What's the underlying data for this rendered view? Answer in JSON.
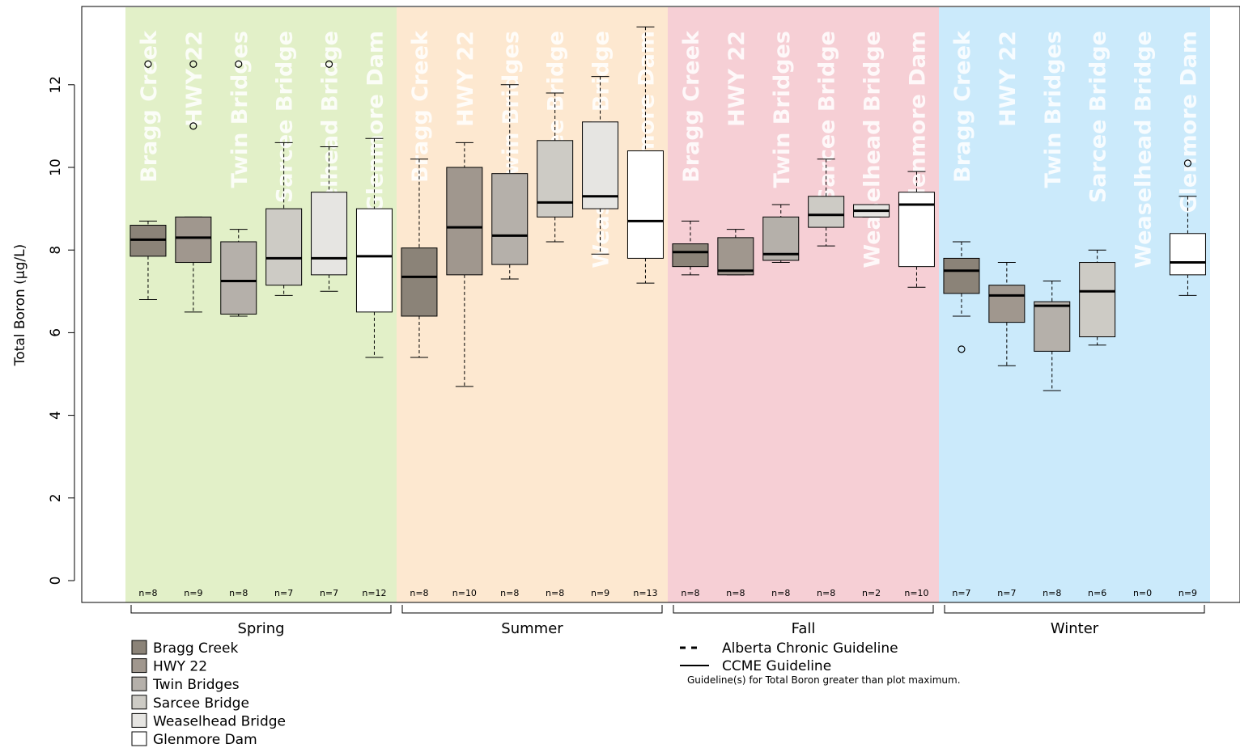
{
  "chart_data": {
    "type": "boxplot",
    "ylabel": "Total Boron (µg/L)",
    "ylim": [
      -0.5,
      13.7
    ],
    "yticks": [
      0,
      2,
      4,
      6,
      8,
      10,
      12
    ],
    "sites": [
      "Bragg Creek",
      "HWY 22",
      "Twin Bridges",
      "Sarcee Bridge",
      "Weaselhead Bridge",
      "Glenmore Dam"
    ],
    "site_colors": [
      "#8b8378",
      "#a0978e",
      "#b5b0aa",
      "#cdcbc5",
      "#e6e5e2",
      "#ffffff"
    ],
    "seasons": [
      {
        "name": "Spring",
        "band_color": "#e2f0c8",
        "counts": [
          "n=8",
          "n=9",
          "n=8",
          "n=7",
          "n=7",
          "n=12"
        ],
        "boxes": [
          {
            "min": 6.8,
            "q1": 7.85,
            "median": 8.25,
            "q3": 8.6,
            "max": 8.7,
            "outliers": [
              12.5
            ]
          },
          {
            "min": 6.5,
            "q1": 7.7,
            "median": 8.3,
            "q3": 8.8,
            "max": 8.8,
            "outliers": [
              11.0,
              12.5
            ]
          },
          {
            "min": 6.4,
            "q1": 6.45,
            "median": 7.25,
            "q3": 8.2,
            "max": 8.5,
            "outliers": [
              12.5
            ]
          },
          {
            "min": 6.9,
            "q1": 7.15,
            "median": 7.8,
            "q3": 9.0,
            "max": 10.6,
            "outliers": []
          },
          {
            "min": 7.0,
            "q1": 7.4,
            "median": 7.8,
            "q3": 9.4,
            "max": 10.5,
            "outliers": [
              12.5
            ]
          },
          {
            "min": 5.4,
            "q1": 6.5,
            "median": 7.85,
            "q3": 9.0,
            "max": 10.7,
            "outliers": []
          }
        ]
      },
      {
        "name": "Summer",
        "band_color": "#fde8d0",
        "counts": [
          "n=8",
          "n=10",
          "n=8",
          "n=8",
          "n=9",
          "n=13"
        ],
        "boxes": [
          {
            "min": 5.4,
            "q1": 6.4,
            "median": 7.35,
            "q3": 8.05,
            "max": 10.2,
            "outliers": []
          },
          {
            "min": 4.7,
            "q1": 7.4,
            "median": 8.55,
            "q3": 10.0,
            "max": 10.6,
            "outliers": []
          },
          {
            "min": 7.3,
            "q1": 7.65,
            "median": 8.35,
            "q3": 9.85,
            "max": 12.0,
            "outliers": []
          },
          {
            "min": 8.2,
            "q1": 8.8,
            "median": 9.15,
            "q3": 10.65,
            "max": 11.8,
            "outliers": []
          },
          {
            "min": 7.9,
            "q1": 9.0,
            "median": 9.3,
            "q3": 11.1,
            "max": 12.2,
            "outliers": []
          },
          {
            "min": 7.2,
            "q1": 7.8,
            "median": 8.7,
            "q3": 10.4,
            "max": 13.4,
            "outliers": []
          }
        ]
      },
      {
        "name": "Fall",
        "band_color": "#f6cfd5",
        "counts": [
          "n=8",
          "n=8",
          "n=8",
          "n=8",
          "n=2",
          "n=10"
        ],
        "boxes": [
          {
            "min": 7.4,
            "q1": 7.6,
            "median": 7.95,
            "q3": 8.15,
            "max": 8.7,
            "outliers": []
          },
          {
            "min": 7.4,
            "q1": 7.4,
            "median": 7.5,
            "q3": 8.3,
            "max": 8.5,
            "outliers": []
          },
          {
            "min": 7.7,
            "q1": 7.75,
            "median": 7.9,
            "q3": 8.8,
            "max": 9.1,
            "outliers": []
          },
          {
            "min": 8.1,
            "q1": 8.55,
            "median": 8.85,
            "q3": 9.3,
            "max": 10.2,
            "outliers": []
          },
          {
            "min": 8.8,
            "q1": 8.8,
            "median": 8.95,
            "q3": 9.1,
            "max": 9.1,
            "outliers": []
          },
          {
            "min": 7.1,
            "q1": 7.6,
            "median": 9.1,
            "q3": 9.4,
            "max": 9.9,
            "outliers": []
          }
        ]
      },
      {
        "name": "Winter",
        "band_color": "#cbeafb",
        "counts": [
          "n=7",
          "n=7",
          "n=8",
          "n=6",
          "n=0",
          "n=9"
        ],
        "boxes": [
          {
            "min": 6.4,
            "q1": 6.95,
            "median": 7.5,
            "q3": 7.8,
            "max": 8.2,
            "outliers": [
              5.6
            ]
          },
          {
            "min": 5.2,
            "q1": 6.25,
            "median": 6.9,
            "q3": 7.15,
            "max": 7.7,
            "outliers": []
          },
          {
            "min": 4.6,
            "q1": 5.55,
            "median": 6.65,
            "q3": 6.75,
            "max": 7.25,
            "outliers": []
          },
          {
            "min": 5.7,
            "q1": 5.9,
            "median": 7.0,
            "q3": 7.7,
            "max": 8.0,
            "outliers": []
          },
          null,
          {
            "min": 6.9,
            "q1": 7.4,
            "median": 7.7,
            "q3": 8.4,
            "max": 9.3,
            "outliers": [
              10.1
            ]
          }
        ]
      }
    ],
    "legend": {
      "sites": [
        "Bragg Creek",
        "HWY 22",
        "Twin Bridges",
        "Sarcee Bridge",
        "Weaselhead Bridge",
        "Glenmore Dam"
      ],
      "guidelines": [
        "Alberta Chronic Guideline",
        "CCME Guideline"
      ],
      "note": "Guideline(s) for Total Boron greater than plot maximum."
    }
  }
}
